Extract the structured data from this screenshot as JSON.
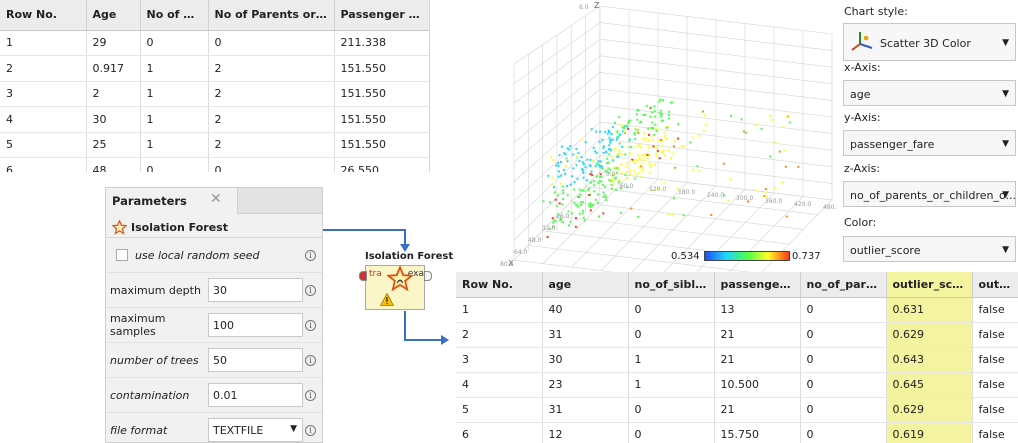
{
  "top_table": {
    "columns": [
      "Row No.",
      "Age",
      "No of Siblings",
      "No of Parents or Children",
      "Passenger Fare"
    ],
    "rows": [
      [
        "1",
        "29",
        "0",
        "0",
        "211.338"
      ],
      [
        "2",
        "0.917",
        "1",
        "2",
        "151.550"
      ],
      [
        "3",
        "2",
        "1",
        "2",
        "151.550"
      ],
      [
        "4",
        "30",
        "1",
        "2",
        "151.550"
      ],
      [
        "5",
        "25",
        "1",
        "2",
        "151.550"
      ],
      [
        "6",
        "48",
        "0",
        "0",
        "26.550"
      ]
    ]
  },
  "parameters": {
    "tab_label": "Parameters",
    "operator_name": "Isolation Forest",
    "use_local_random_seed_label": "use local random seed",
    "fields": [
      {
        "label": "maximum depth",
        "value": "30",
        "italic": false
      },
      {
        "label": "maximum samples",
        "value": "100",
        "italic": false
      },
      {
        "label": "number of trees",
        "value": "50",
        "italic": true
      },
      {
        "label": "contamination",
        "value": "0.01",
        "italic": true
      }
    ],
    "file_format_label": "file format",
    "file_format_value": "TEXTFILE"
  },
  "operator": {
    "title": "Isolation Forest",
    "in_port": "tra",
    "out_port": "exa"
  },
  "chart": {
    "z_axis_label": "Z",
    "z_tick_top": "6.0",
    "z_tick_bottom": "0.0",
    "x_axis_label": "X",
    "x_ticks": [
      "60.0",
      "120.0",
      "180.0",
      "240.0",
      "300.0",
      "360.0",
      "420.0",
      "480.0",
      "540.0"
    ],
    "y_ticks": [
      "80.0",
      "64.0",
      "48.0",
      "32.0",
      "16.0"
    ],
    "legend_min": "0.534",
    "legend_max": "0.737"
  },
  "chart_data": {
    "type": "scatter",
    "title": "",
    "zlim": [
      0,
      6
    ],
    "color_scale": [
      "#1e4cff",
      "#1fd6ff",
      "#4cff4c",
      "#ffff22",
      "#ff3a1a"
    ],
    "color_range": [
      0.534,
      0.737
    ],
    "grid": true
  },
  "settings": {
    "chart_style_label": "Chart style:",
    "chart_style_value": "Scatter 3D Color",
    "x_axis_label": "x-Axis:",
    "x_axis_value": "age",
    "y_axis_label": "y-Axis:",
    "y_axis_value": "passenger_fare",
    "z_axis_label": "z-Axis:",
    "z_axis_value": "no_of_parents_or_children_o...",
    "color_label": "Color:",
    "color_value": "outlier_score"
  },
  "bottom_table": {
    "columns": [
      "Row No.",
      "age",
      "no_of_siblin...",
      "passenger_...",
      "no_of_pare...",
      "outlier_score",
      "outlier"
    ],
    "rows": [
      [
        "1",
        "40",
        "0",
        "13",
        "0",
        "0.631",
        "false"
      ],
      [
        "2",
        "31",
        "0",
        "21",
        "0",
        "0.629",
        "false"
      ],
      [
        "3",
        "30",
        "1",
        "21",
        "0",
        "0.643",
        "false"
      ],
      [
        "4",
        "23",
        "1",
        "10.500",
        "0",
        "0.645",
        "false"
      ],
      [
        "5",
        "31",
        "0",
        "21",
        "0",
        "0.629",
        "false"
      ],
      [
        "6",
        "12",
        "0",
        "15.750",
        "0",
        "0.619",
        "false"
      ]
    ]
  },
  "colors": {
    "highlight": "#f3f3a0",
    "connector": "#3a6fc4",
    "operator_fill": "#fbf6c8"
  }
}
